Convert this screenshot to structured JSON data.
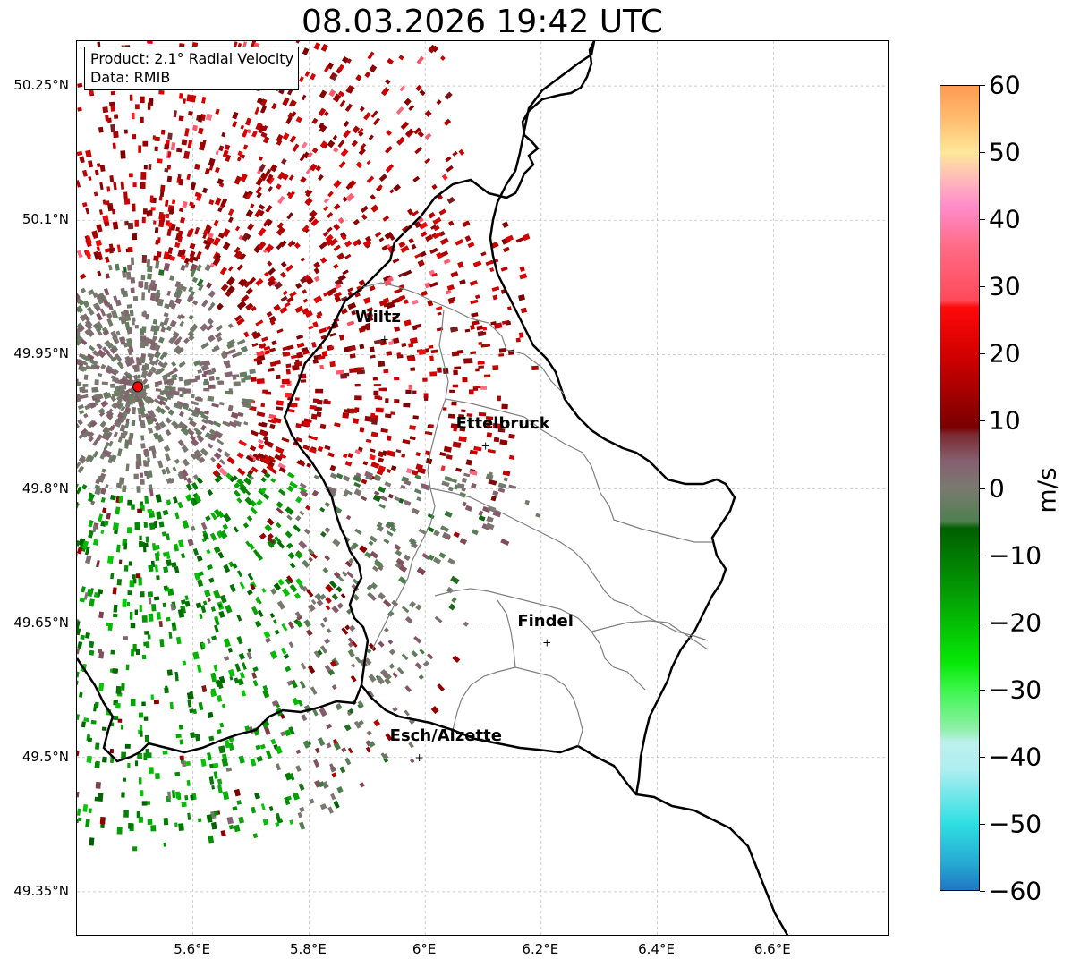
{
  "title": "08.03.2026 19:42 UTC",
  "info": {
    "product": "Product: 2.1° Radial Velocity",
    "source": "Data: RMIB"
  },
  "map": {
    "lon_range": [
      5.4,
      6.8
    ],
    "lat_range": [
      49.3,
      50.3
    ],
    "lat_ticks": [
      {
        "value": 50.25,
        "label": "50.25°N"
      },
      {
        "value": 50.1,
        "label": "50.1°N"
      },
      {
        "value": 49.95,
        "label": "49.95°N"
      },
      {
        "value": 49.8,
        "label": "49.8°N"
      },
      {
        "value": 49.65,
        "label": "49.65°N"
      },
      {
        "value": 49.5,
        "label": "49.5°N"
      },
      {
        "value": 49.35,
        "label": "49.35°N"
      }
    ],
    "lon_ticks": [
      {
        "value": 5.6,
        "label": "5.6°E"
      },
      {
        "value": 5.8,
        "label": "5.8°E"
      },
      {
        "value": 6.0,
        "label": "6°E"
      },
      {
        "value": 6.2,
        "label": "6.2°E"
      },
      {
        "value": 6.4,
        "label": "6.4°E"
      },
      {
        "value": 6.6,
        "label": "6.6°E"
      }
    ],
    "radar": {
      "name": "radar-site",
      "lon": 5.505,
      "lat": 49.914
    },
    "cities": [
      {
        "name": "Wiltz",
        "lon": 5.93,
        "lat": 49.967
      },
      {
        "name": "Ettelbruck",
        "lon": 6.104,
        "lat": 49.848
      },
      {
        "name": "Findel",
        "lon": 6.21,
        "lat": 49.628
      },
      {
        "name": "Esch/Alzette",
        "lon": 5.99,
        "lat": 49.5
      }
    ]
  },
  "colorbar": {
    "unit": "m/s",
    "min": -60,
    "max": 60,
    "ticks": [
      {
        "value": 60,
        "label": "60"
      },
      {
        "value": 50,
        "label": "50"
      },
      {
        "value": 40,
        "label": "40"
      },
      {
        "value": 30,
        "label": "30"
      },
      {
        "value": 20,
        "label": "20"
      },
      {
        "value": 10,
        "label": "10"
      },
      {
        "value": 0,
        "label": "0"
      },
      {
        "value": -10,
        "label": "−10"
      },
      {
        "value": -20,
        "label": "−20"
      },
      {
        "value": -30,
        "label": "−30"
      },
      {
        "value": -40,
        "label": "−40"
      },
      {
        "value": -50,
        "label": "−50"
      },
      {
        "value": -60,
        "label": "−60"
      }
    ],
    "stops": [
      {
        "value": -60,
        "color": "#1f77c4"
      },
      {
        "value": -56,
        "color": "#27a9d2"
      },
      {
        "value": -50,
        "color": "#2fe0e3"
      },
      {
        "value": -42,
        "color": "#aeeef0"
      },
      {
        "value": -38,
        "color": "#bdf0ee"
      },
      {
        "value": -36,
        "color": "#8ff0a8"
      },
      {
        "value": -30,
        "color": "#3af64a"
      },
      {
        "value": -26,
        "color": "#06e806"
      },
      {
        "value": -15,
        "color": "#039803"
      },
      {
        "value": -6,
        "color": "#005f00"
      },
      {
        "value": -5,
        "color": "#4f7f4f"
      },
      {
        "value": 0,
        "color": "#7a7a70"
      },
      {
        "value": 4,
        "color": "#866070"
      },
      {
        "value": 8,
        "color": "#7a2a30"
      },
      {
        "value": 9,
        "color": "#7a0000"
      },
      {
        "value": 20,
        "color": "#d30000"
      },
      {
        "value": 27,
        "color": "#ff0a0a"
      },
      {
        "value": 28,
        "color": "#ff4a5a"
      },
      {
        "value": 36,
        "color": "#ff6b86"
      },
      {
        "value": 42,
        "color": "#ff8ccb"
      },
      {
        "value": 46,
        "color": "#ffb8ba"
      },
      {
        "value": 50,
        "color": "#ffe79a"
      },
      {
        "value": 55,
        "color": "#ffbd70"
      },
      {
        "value": 60,
        "color": "#ff9a52"
      }
    ]
  },
  "colors": {
    "border_national": "#000000",
    "border_canton": "#808080",
    "grid": "#b0b0b0",
    "radar_marker": "#ff0000"
  }
}
